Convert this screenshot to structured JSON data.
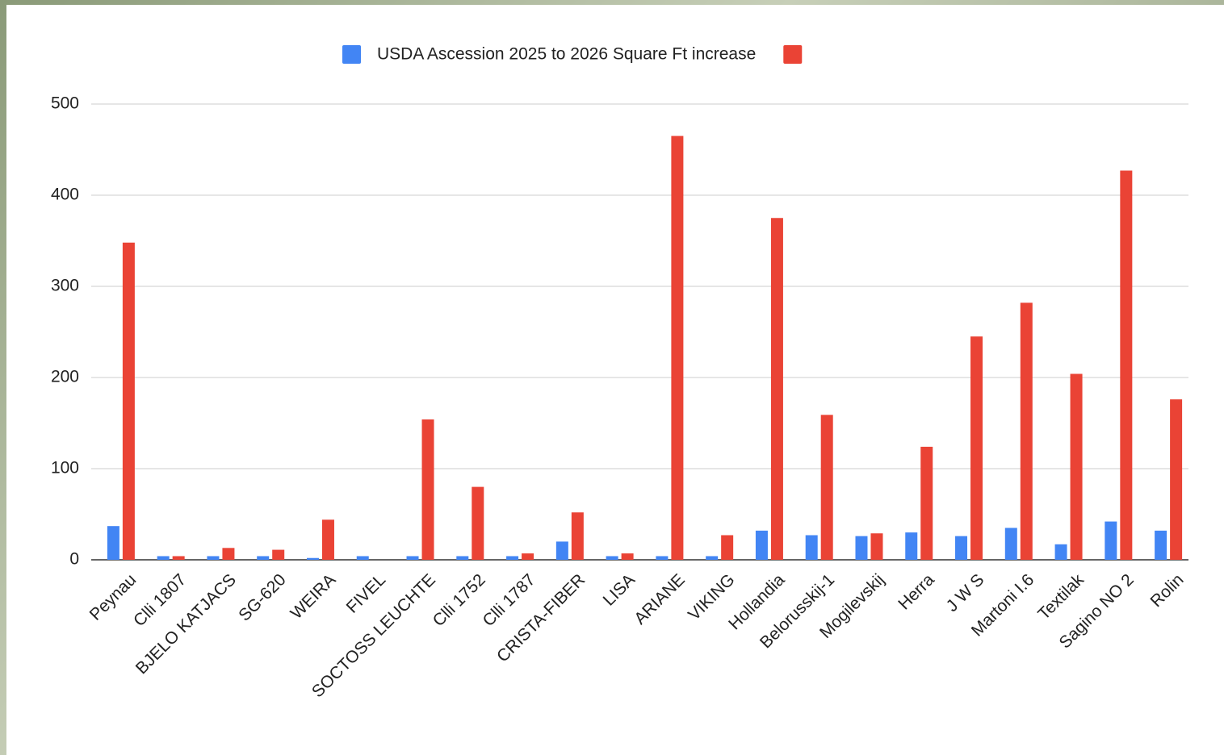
{
  "chart_data": {
    "type": "bar",
    "categories": [
      "Peynau",
      "Clli 1807",
      "BJELO KATJACS",
      "SG-620",
      "WEIRA",
      "FIVEL",
      "SOCTOSS LEUCHTE",
      "Clli 1752",
      "Clli 1787",
      "CRISTA-FIBER",
      "LISA",
      "ARIANE",
      "VIKING",
      "Hollandia",
      "Belorusskij-1",
      "Mogilevskij",
      "Herra",
      "J W S",
      "Martoni I.6",
      "Textilak",
      "Sagino NO 2",
      "Rolin"
    ],
    "series": [
      {
        "name": "USDA Ascession 2025 to 2026 Square Ft increase",
        "color": "#4285f4",
        "values": [
          37,
          4,
          4,
          4,
          2,
          4,
          4,
          4,
          4,
          20,
          4,
          4,
          4,
          32,
          27,
          26,
          30,
          26,
          35,
          17,
          42,
          32
        ]
      },
      {
        "color": "#ea4335",
        "values": [
          348,
          4,
          13,
          11,
          44,
          0,
          154,
          80,
          7,
          52,
          7,
          465,
          27,
          375,
          159,
          29,
          124,
          245,
          282,
          204,
          427,
          176
        ]
      }
    ],
    "ylim": [
      0,
      500
    ],
    "yticks": [
      0,
      100,
      200,
      300,
      400,
      500
    ],
    "grid": true
  }
}
